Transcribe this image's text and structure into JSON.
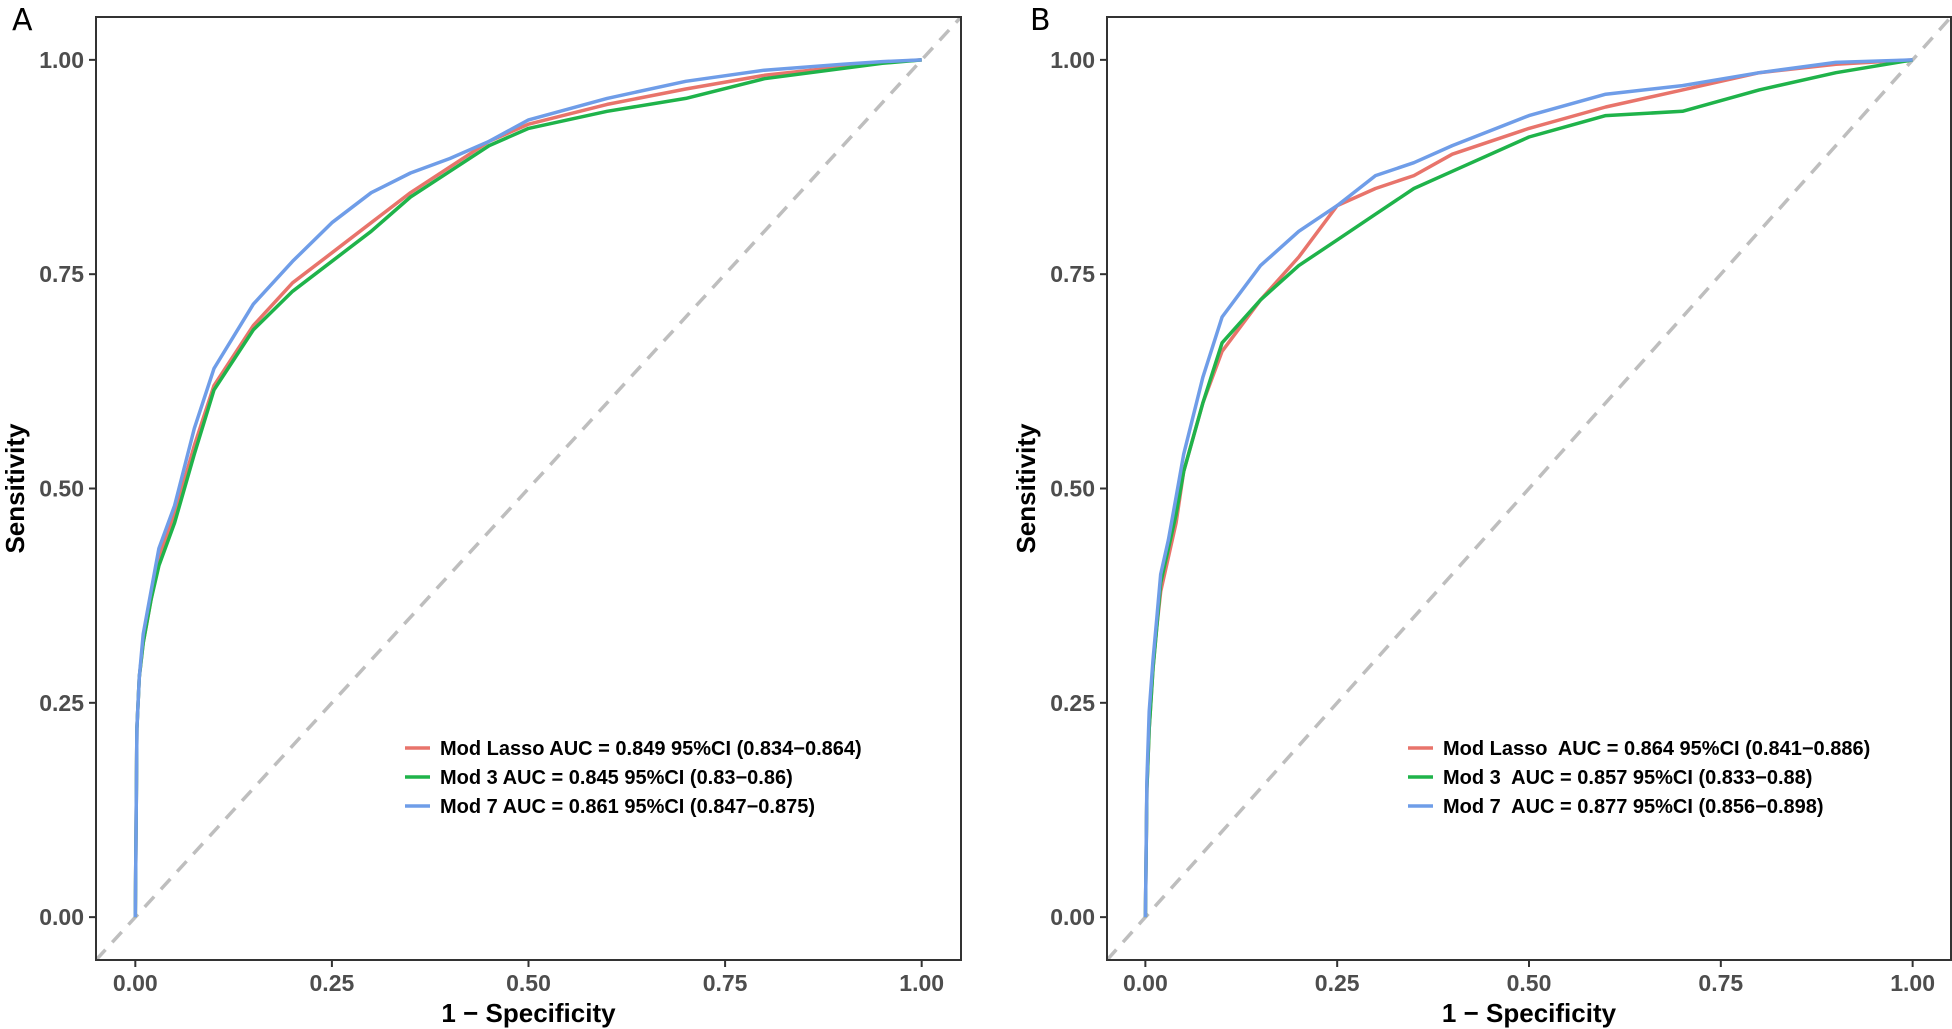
{
  "chart_data": [
    {
      "panel": "A",
      "type": "line",
      "xlabel": "1 − Specificity",
      "ylabel": "Sensitivity",
      "xlim": [
        -0.05,
        1.05
      ],
      "ylim": [
        -0.05,
        1.05
      ],
      "xticks": [
        "0.00",
        "0.25",
        "0.50",
        "0.75",
        "1.00"
      ],
      "yticks": [
        "0.00",
        "0.25",
        "0.50",
        "0.75",
        "1.00"
      ],
      "grid": false,
      "legend_position": "bottom-right",
      "reference_line": {
        "style": "dashed",
        "color": "#bebebe",
        "from": [
          -0.05,
          -0.05
        ],
        "to": [
          1.05,
          1.05
        ]
      },
      "series": [
        {
          "name": "Mod Lasso",
          "label": "Mod Lasso AUC = 0.849 95%CI (0.834−0.864)",
          "color": "#e8746b",
          "x": [
            0,
            0.002,
            0.005,
            0.01,
            0.02,
            0.03,
            0.05,
            0.075,
            0.1,
            0.15,
            0.2,
            0.25,
            0.3,
            0.35,
            0.4,
            0.45,
            0.5,
            0.6,
            0.7,
            0.8,
            0.9,
            0.95,
            1
          ],
          "y": [
            0,
            0.22,
            0.28,
            0.32,
            0.37,
            0.42,
            0.47,
            0.55,
            0.62,
            0.69,
            0.74,
            0.775,
            0.81,
            0.845,
            0.875,
            0.905,
            0.925,
            0.948,
            0.966,
            0.982,
            0.992,
            0.997,
            1
          ]
        },
        {
          "name": "Mod 3",
          "label": "Mod 3 AUC = 0.845 95%CI (0.83−0.86)",
          "color": "#1fb34a",
          "x": [
            0,
            0.002,
            0.005,
            0.01,
            0.02,
            0.03,
            0.05,
            0.075,
            0.1,
            0.15,
            0.2,
            0.25,
            0.3,
            0.35,
            0.4,
            0.45,
            0.5,
            0.6,
            0.7,
            0.8,
            0.9,
            0.95,
            1
          ],
          "y": [
            0,
            0.22,
            0.28,
            0.32,
            0.37,
            0.41,
            0.46,
            0.54,
            0.615,
            0.685,
            0.73,
            0.765,
            0.8,
            0.84,
            0.87,
            0.9,
            0.92,
            0.94,
            0.955,
            0.978,
            0.99,
            0.996,
            1
          ]
        },
        {
          "name": "Mod 7",
          "label": "Mod 7 AUC = 0.861 95%CI (0.847−0.875)",
          "color": "#6f9de8",
          "x": [
            0,
            0.002,
            0.005,
            0.01,
            0.02,
            0.03,
            0.05,
            0.075,
            0.1,
            0.15,
            0.2,
            0.25,
            0.3,
            0.35,
            0.4,
            0.45,
            0.5,
            0.6,
            0.7,
            0.8,
            0.9,
            0.95,
            1
          ],
          "y": [
            0,
            0.22,
            0.28,
            0.33,
            0.38,
            0.43,
            0.48,
            0.57,
            0.64,
            0.715,
            0.765,
            0.81,
            0.845,
            0.868,
            0.885,
            0.905,
            0.93,
            0.955,
            0.975,
            0.988,
            0.995,
            0.998,
            1
          ]
        }
      ]
    },
    {
      "panel": "B",
      "type": "line",
      "xlabel": "1 − Specificity",
      "ylabel": "Sensitivity",
      "xlim": [
        -0.05,
        1.05
      ],
      "ylim": [
        -0.05,
        1.05
      ],
      "xticks": [
        "0.00",
        "0.25",
        "0.50",
        "0.75",
        "1.00"
      ],
      "yticks": [
        "0.00",
        "0.25",
        "0.50",
        "0.75",
        "1.00"
      ],
      "grid": false,
      "legend_position": "bottom-right",
      "reference_line": {
        "style": "dashed",
        "color": "#bebebe",
        "from": [
          -0.05,
          -0.05
        ],
        "to": [
          1.05,
          1.05
        ]
      },
      "series": [
        {
          "name": "Mod Lasso",
          "label": "Mod Lasso  AUC = 0.864 95%CI (0.841−0.886)",
          "color": "#e8746b",
          "x": [
            0,
            0.002,
            0.005,
            0.01,
            0.015,
            0.02,
            0.03,
            0.04,
            0.05,
            0.075,
            0.1,
            0.15,
            0.2,
            0.25,
            0.3,
            0.35,
            0.4,
            0.5,
            0.6,
            0.7,
            0.8,
            0.9,
            1
          ],
          "y": [
            0,
            0.15,
            0.22,
            0.29,
            0.34,
            0.38,
            0.42,
            0.46,
            0.52,
            0.6,
            0.66,
            0.72,
            0.77,
            0.83,
            0.85,
            0.865,
            0.89,
            0.92,
            0.945,
            0.965,
            0.985,
            0.995,
            1
          ]
        },
        {
          "name": "Mod 3",
          "label": "Mod 3  AUC = 0.857 95%CI (0.833−0.88)",
          "color": "#1fb34a",
          "x": [
            0,
            0.002,
            0.005,
            0.01,
            0.015,
            0.02,
            0.03,
            0.04,
            0.05,
            0.075,
            0.1,
            0.15,
            0.2,
            0.25,
            0.3,
            0.35,
            0.4,
            0.5,
            0.6,
            0.7,
            0.8,
            0.9,
            1
          ],
          "y": [
            0,
            0.15,
            0.22,
            0.29,
            0.34,
            0.39,
            0.43,
            0.47,
            0.52,
            0.6,
            0.67,
            0.72,
            0.76,
            0.79,
            0.82,
            0.85,
            0.87,
            0.91,
            0.935,
            0.94,
            0.965,
            0.985,
            1
          ]
        },
        {
          "name": "Mod 7",
          "label": "Mod 7  AUC = 0.877 95%CI (0.856−0.898)",
          "color": "#6f9de8",
          "x": [
            0,
            0.002,
            0.005,
            0.01,
            0.015,
            0.02,
            0.03,
            0.04,
            0.05,
            0.075,
            0.1,
            0.15,
            0.2,
            0.25,
            0.3,
            0.35,
            0.4,
            0.5,
            0.6,
            0.7,
            0.8,
            0.9,
            1
          ],
          "y": [
            0,
            0.16,
            0.24,
            0.3,
            0.35,
            0.4,
            0.44,
            0.49,
            0.54,
            0.63,
            0.7,
            0.76,
            0.8,
            0.83,
            0.865,
            0.88,
            0.9,
            0.935,
            0.96,
            0.97,
            0.985,
            0.997,
            1
          ]
        }
      ]
    }
  ]
}
